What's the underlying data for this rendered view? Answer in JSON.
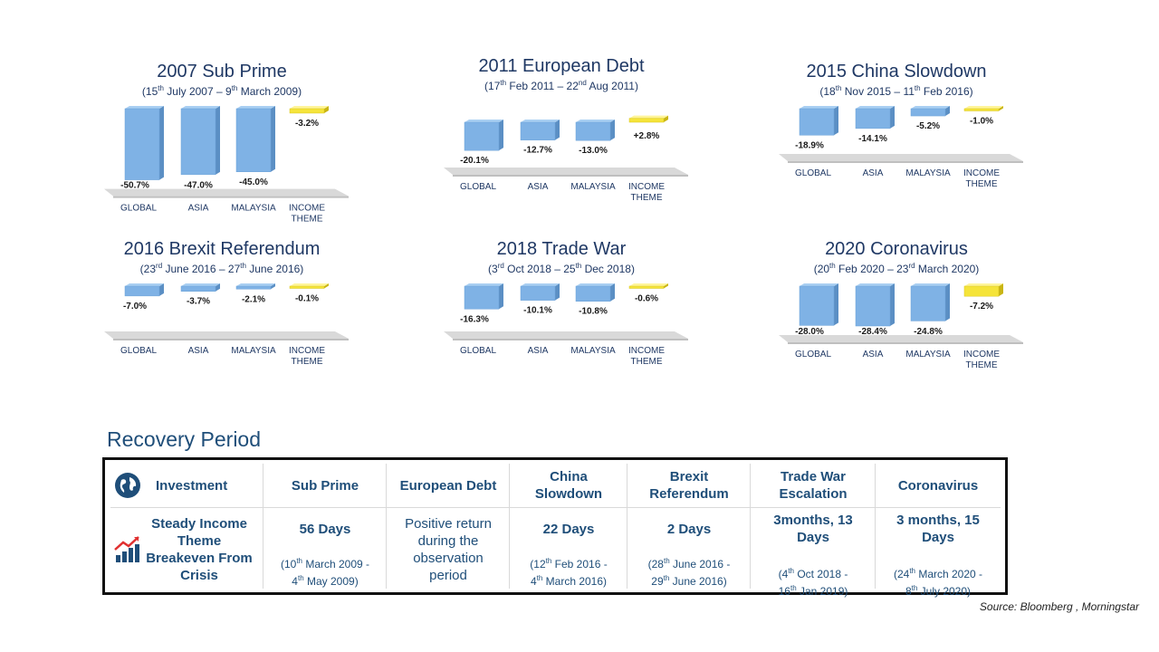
{
  "categories": [
    "GLOBAL",
    "ASIA",
    "MALAYSIA",
    "INCOME THEME"
  ],
  "chart_data": [
    {
      "type": "bar",
      "title": "2007 Sub Prime",
      "subtitle": {
        "d1": "15",
        "s1": "th",
        "m1": " July 2007 – ",
        "d2": "9",
        "s2": "th",
        "m2": " March 2009)"
      },
      "categories": [
        "GLOBAL",
        "ASIA",
        "MALAYSIA",
        "INCOME THEME"
      ],
      "values": [
        -50.7,
        -47.0,
        -45.0,
        -3.2
      ],
      "labels": [
        "-50.7%",
        "-47.0%",
        "-45.0%",
        "-3.2%"
      ]
    },
    {
      "type": "bar",
      "title": "2011 European Debt",
      "subtitle": {
        "d1": "17",
        "s1": "th",
        "m1": " Feb 2011 – ",
        "d2": "22",
        "s2": "nd",
        "m2": " Aug 2011)"
      },
      "categories": [
        "GLOBAL",
        "ASIA",
        "MALAYSIA",
        "INCOME THEME"
      ],
      "values": [
        -20.1,
        -12.7,
        -13.0,
        2.8
      ],
      "labels": [
        "-20.1%",
        "-12.7%",
        "-13.0%",
        "+2.8%"
      ]
    },
    {
      "type": "bar",
      "title": "2015 China Slowdown",
      "subtitle": {
        "d1": "18",
        "s1": "th",
        "m1": " Nov  2015 – ",
        "d2": "11",
        "s2": "th",
        "m2": " Feb 2016)"
      },
      "categories": [
        "GLOBAL",
        "ASIA",
        "MALAYSIA",
        "INCOME THEME"
      ],
      "values": [
        -18.9,
        -14.1,
        -5.2,
        -1.0
      ],
      "labels": [
        "-18.9%",
        "-14.1%",
        "-5.2%",
        "-1.0%"
      ]
    },
    {
      "type": "bar",
      "title": "2016 Brexit Referendum",
      "subtitle": {
        "d1": "23",
        "s1": "rd",
        "m1": " June 2016 – ",
        "d2": "27",
        "s2": "th",
        "m2": " June 2016)"
      },
      "categories": [
        "GLOBAL",
        "ASIA",
        "MALAYSIA",
        "INCOME THEME"
      ],
      "values": [
        -7.0,
        -3.7,
        -2.1,
        -0.1
      ],
      "labels": [
        "-7.0%",
        "-3.7%",
        "-2.1%",
        "-0.1%"
      ]
    },
    {
      "type": "bar",
      "title": "2018 Trade War",
      "subtitle": {
        "d1": "3",
        "s1": "rd",
        "m1": " Oct 2018 – ",
        "d2": "25",
        "s2": "th",
        "m2": " Dec 2018)"
      },
      "categories": [
        "GLOBAL",
        "ASIA",
        "MALAYSIA",
        "INCOME THEME"
      ],
      "values": [
        -16.3,
        -10.1,
        -10.8,
        -0.6
      ],
      "labels": [
        "-16.3%",
        "-10.1%",
        "-10.8%",
        "-0.6%"
      ]
    },
    {
      "type": "bar",
      "title": "2020 Coronavirus",
      "subtitle": {
        "d1": "20",
        "s1": "th",
        "m1": " Feb 2020 – ",
        "d2": "23",
        "s2": "rd",
        "m2": " March 2020)"
      },
      "categories": [
        "GLOBAL",
        "ASIA",
        "MALAYSIA",
        "INCOME THEME"
      ],
      "values": [
        -28.0,
        -28.4,
        -24.8,
        -7.2
      ],
      "labels": [
        "-28.0%",
        "-28.4%",
        "-24.8%",
        "-7.2%"
      ]
    }
  ],
  "recovery": {
    "title": "Recovery Period",
    "header_label": "Investment",
    "row_label": "Steady Income Theme Breakeven From Crisis",
    "columns": [
      {
        "h": "Sub Prime",
        "days": "56 Days",
        "r": {
          "d1": "10",
          "s1": "th",
          "t1": " March 2009 - ",
          "d2": "4",
          "s2": "th",
          "t2": " May 2009)"
        }
      },
      {
        "h": "European Debt",
        "text": "Positive return during the observation period"
      },
      {
        "h": "China Slowdown",
        "days": "22 Days",
        "r": {
          "d1": "12",
          "s1": "th",
          "t1": " Feb 2016 - ",
          "d2": "4",
          "s2": "th",
          "t2": " March 2016)"
        }
      },
      {
        "h": "Brexit Referendum",
        "days": "2 Days",
        "r": {
          "d1": "28",
          "s1": "th",
          "t1": " June  2016 - ",
          "d2": "29",
          "s2": "th",
          "t2": " June  2016)"
        }
      },
      {
        "h": "Trade War Escalation",
        "days": "3months, 13 Days",
        "r": {
          "d1": "4",
          "s1": "th",
          "t1": " Oct 2018 - ",
          "d2": "16",
          "s2": "th",
          "t2": " Jan 2019)"
        }
      },
      {
        "h": "Coronavirus",
        "days": "3 months, 15 Days",
        "r": {
          "d1": "24",
          "s1": "th",
          "t1": " March  2020 - ",
          "d2": "8",
          "s2": "th",
          "t2": " July 2020)"
        }
      }
    ]
  },
  "source": "Source: Bloomberg , Morningstar",
  "colors": {
    "bar": "#7fb2e5",
    "bar_side": "#5b8fc4",
    "bar_top": "#a9cff2",
    "income": "#f5e43a",
    "income_side": "#c9b514",
    "floor": "#d9d9d9",
    "text": "#1f3864",
    "accent": "#1f4e79"
  }
}
